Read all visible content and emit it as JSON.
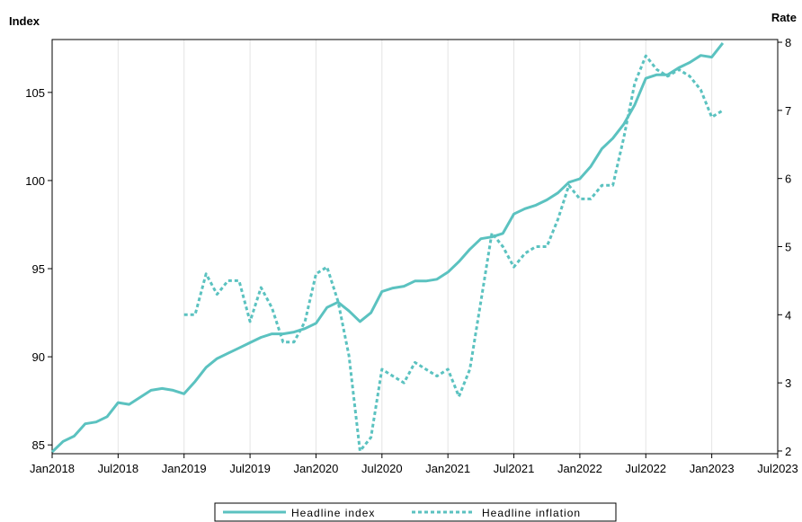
{
  "chart_data": {
    "type": "line",
    "left_axis": {
      "title": "Index",
      "ylim": [
        84.5,
        108.0
      ],
      "ticks": [
        "85",
        "90",
        "95",
        "100",
        "105"
      ],
      "tick_values": [
        85,
        90,
        95,
        100,
        105
      ]
    },
    "right_axis": {
      "title": "Rate",
      "ylim": [
        1.96,
        8.04
      ],
      "ticks": [
        "2",
        "3",
        "4",
        "5",
        "6",
        "7",
        "8"
      ],
      "tick_values": [
        2,
        3,
        4,
        5,
        6,
        7,
        8
      ]
    },
    "x_axis": {
      "range": [
        "2018-01",
        "2023-07"
      ],
      "ticks": [
        "Jan2018",
        "Jul2018",
        "Jan2019",
        "Jul2019",
        "Jan2020",
        "Jul2020",
        "Jan2021",
        "Jul2021",
        "Jan2022",
        "Jul2022",
        "Jan2023",
        "Jul2023"
      ],
      "tick_dates": [
        "2018-01",
        "2018-07",
        "2019-01",
        "2019-07",
        "2020-01",
        "2020-07",
        "2021-01",
        "2021-07",
        "2022-01",
        "2022-07",
        "2023-01",
        "2023-07"
      ]
    },
    "grid": "vertical",
    "legend_position": "bottom",
    "series": [
      {
        "name": "Headline index",
        "axis": "left",
        "style": "solid",
        "color": "#5bc2c0",
        "x": [
          "2018-01",
          "2018-02",
          "2018-03",
          "2018-04",
          "2018-05",
          "2018-06",
          "2018-07",
          "2018-08",
          "2018-09",
          "2018-10",
          "2018-11",
          "2018-12",
          "2019-01",
          "2019-02",
          "2019-03",
          "2019-04",
          "2019-05",
          "2019-06",
          "2019-07",
          "2019-08",
          "2019-09",
          "2019-10",
          "2019-11",
          "2019-12",
          "2020-01",
          "2020-02",
          "2020-03",
          "2020-04",
          "2020-05",
          "2020-06",
          "2020-07",
          "2020-08",
          "2020-09",
          "2020-10",
          "2020-11",
          "2020-12",
          "2021-01",
          "2021-02",
          "2021-03",
          "2021-04",
          "2021-05",
          "2021-06",
          "2021-07",
          "2021-08",
          "2021-09",
          "2021-10",
          "2021-11",
          "2021-12",
          "2022-01",
          "2022-02",
          "2022-03",
          "2022-04",
          "2022-05",
          "2022-06",
          "2022-07",
          "2022-08",
          "2022-09",
          "2022-10",
          "2022-11",
          "2022-12",
          "2023-01",
          "2023-02"
        ],
        "values": [
          84.6,
          85.2,
          85.5,
          86.2,
          86.3,
          86.6,
          87.4,
          87.3,
          87.7,
          88.1,
          88.2,
          88.1,
          87.9,
          88.6,
          89.4,
          89.9,
          90.2,
          90.5,
          90.8,
          91.1,
          91.3,
          91.3,
          91.4,
          91.6,
          91.9,
          92.8,
          93.1,
          92.6,
          92.0,
          92.5,
          93.7,
          93.9,
          94.0,
          94.3,
          94.3,
          94.4,
          94.8,
          95.4,
          96.1,
          96.7,
          96.8,
          97.0,
          98.1,
          98.4,
          98.6,
          98.9,
          99.3,
          99.9,
          100.1,
          100.8,
          101.8,
          102.4,
          103.2,
          104.3,
          105.8,
          106.0,
          106.0,
          106.4,
          106.7,
          107.1,
          107.0,
          107.8
        ]
      },
      {
        "name": "Headline inflation",
        "axis": "right",
        "style": "dotted",
        "color": "#5bc2c0",
        "x": [
          "2019-01",
          "2019-02",
          "2019-03",
          "2019-04",
          "2019-05",
          "2019-06",
          "2019-07",
          "2019-08",
          "2019-09",
          "2019-10",
          "2019-11",
          "2019-12",
          "2020-01",
          "2020-02",
          "2020-03",
          "2020-04",
          "2020-05",
          "2020-06",
          "2020-07",
          "2020-08",
          "2020-09",
          "2020-10",
          "2020-11",
          "2020-12",
          "2021-01",
          "2021-02",
          "2021-03",
          "2021-04",
          "2021-05",
          "2021-06",
          "2021-07",
          "2021-08",
          "2021-09",
          "2021-10",
          "2021-11",
          "2021-12",
          "2022-01",
          "2022-02",
          "2022-03",
          "2022-04",
          "2022-05",
          "2022-06",
          "2022-07",
          "2022-08",
          "2022-09",
          "2022-10",
          "2022-11",
          "2022-12",
          "2023-01",
          "2023-02"
        ],
        "values": [
          4.0,
          4.0,
          4.6,
          4.3,
          4.5,
          4.5,
          3.9,
          4.4,
          4.1,
          3.6,
          3.6,
          3.9,
          4.6,
          4.7,
          4.2,
          3.4,
          2.0,
          2.2,
          3.2,
          3.1,
          3.0,
          3.3,
          3.2,
          3.1,
          3.2,
          2.8,
          3.2,
          4.2,
          5.2,
          5.0,
          4.7,
          4.9,
          5.0,
          5.0,
          5.4,
          5.9,
          5.7,
          5.7,
          5.9,
          5.9,
          6.6,
          7.4,
          7.8,
          7.6,
          7.5,
          7.6,
          7.5,
          7.3,
          6.9,
          7.0
        ]
      }
    ]
  }
}
